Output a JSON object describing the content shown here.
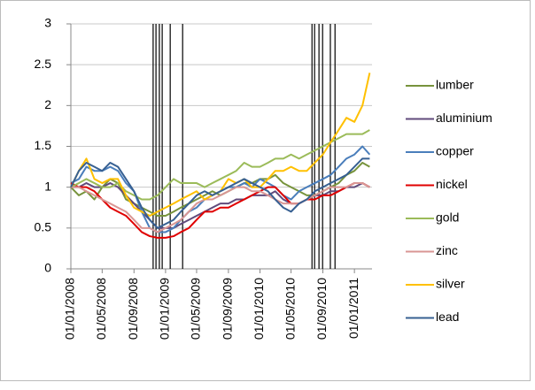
{
  "chart_data": {
    "type": "line",
    "x": [
      "2008-01-01",
      "2008-02-01",
      "2008-03-01",
      "2008-04-01",
      "2008-05-01",
      "2008-06-01",
      "2008-07-01",
      "2008-08-01",
      "2008-09-01",
      "2008-10-01",
      "2008-11-01",
      "2008-12-01",
      "2009-01-01",
      "2009-02-01",
      "2009-03-01",
      "2009-04-01",
      "2009-05-01",
      "2009-06-01",
      "2009-07-01",
      "2009-08-01",
      "2009-09-01",
      "2009-10-01",
      "2009-11-01",
      "2009-12-01",
      "2010-01-01",
      "2010-02-01",
      "2010-03-01",
      "2010-04-01",
      "2010-05-01",
      "2010-06-01",
      "2010-07-01",
      "2010-08-01",
      "2010-09-01",
      "2010-10-01",
      "2010-11-01",
      "2010-12-01",
      "2011-01-01",
      "2011-02-01",
      "2011-03-01"
    ],
    "series": [
      {
        "name": "lumber",
        "color": "#77933c",
        "values": [
          1.0,
          0.9,
          0.95,
          0.85,
          1.0,
          1.1,
          1.05,
          0.85,
          0.8,
          0.75,
          0.7,
          0.65,
          0.65,
          0.7,
          0.75,
          0.8,
          0.85,
          0.9,
          0.95,
          0.9,
          0.95,
          1.0,
          1.05,
          1.05,
          1.1,
          1.1,
          1.15,
          1.05,
          1.0,
          0.95,
          0.9,
          0.9,
          0.95,
          1.0,
          1.05,
          1.15,
          1.2,
          1.3,
          1.25
        ]
      },
      {
        "name": "aluminium",
        "color": "#604a7b",
        "values": [
          1.0,
          1.0,
          1.05,
          1.0,
          1.0,
          1.05,
          1.0,
          0.9,
          0.8,
          0.7,
          0.6,
          0.5,
          0.5,
          0.5,
          0.55,
          0.6,
          0.65,
          0.7,
          0.75,
          0.8,
          0.8,
          0.85,
          0.85,
          0.9,
          0.9,
          0.9,
          0.95,
          0.85,
          0.8,
          0.8,
          0.85,
          0.9,
          0.9,
          0.95,
          0.95,
          1.0,
          1.0,
          1.05,
          1.0
        ]
      },
      {
        "name": "copper",
        "color": "#4a7ebb",
        "values": [
          1.05,
          1.1,
          1.25,
          1.2,
          1.2,
          1.25,
          1.2,
          1.05,
          0.95,
          0.7,
          0.5,
          0.45,
          0.45,
          0.5,
          0.6,
          0.7,
          0.75,
          0.85,
          0.9,
          0.95,
          1.0,
          1.0,
          1.05,
          1.0,
          1.1,
          1.05,
          1.0,
          0.9,
          0.85,
          0.95,
          1.0,
          1.05,
          1.1,
          1.15,
          1.25,
          1.35,
          1.4,
          1.5,
          1.4
        ]
      },
      {
        "name": "nickel",
        "color": "#e00000",
        "values": [
          1.05,
          1.0,
          1.0,
          0.95,
          0.85,
          0.75,
          0.7,
          0.65,
          0.55,
          0.45,
          0.4,
          0.38,
          0.38,
          0.4,
          0.45,
          0.5,
          0.6,
          0.7,
          0.7,
          0.75,
          0.75,
          0.8,
          0.85,
          0.9,
          0.95,
          1.0,
          1.0,
          0.9,
          0.8,
          0.8,
          0.85,
          0.85,
          0.9,
          0.9,
          0.95,
          1.0,
          1.05,
          1.05,
          1.0
        ]
      },
      {
        "name": "gold",
        "color": "#9bbb59",
        "values": [
          1.0,
          1.05,
          1.1,
          1.05,
          1.0,
          1.0,
          1.05,
          0.95,
          0.9,
          0.85,
          0.85,
          0.9,
          1.0,
          1.1,
          1.05,
          1.05,
          1.05,
          1.0,
          1.05,
          1.1,
          1.15,
          1.2,
          1.3,
          1.25,
          1.25,
          1.3,
          1.35,
          1.35,
          1.4,
          1.35,
          1.4,
          1.45,
          1.5,
          1.55,
          1.6,
          1.65,
          1.65,
          1.65,
          1.7
        ]
      },
      {
        "name": "zinc",
        "color": "#d99694",
        "values": [
          1.0,
          1.0,
          0.95,
          0.9,
          0.85,
          0.8,
          0.75,
          0.7,
          0.6,
          0.5,
          0.5,
          0.45,
          0.5,
          0.55,
          0.6,
          0.7,
          0.8,
          0.85,
          0.85,
          0.9,
          0.95,
          1.0,
          1.0,
          0.95,
          0.95,
          0.9,
          0.85,
          0.8,
          0.8,
          0.8,
          0.85,
          0.9,
          0.95,
          1.0,
          1.0,
          1.0,
          1.05,
          1.05,
          1.0
        ]
      },
      {
        "name": "silver",
        "color": "#ffc000",
        "values": [
          1.0,
          1.2,
          1.35,
          1.1,
          1.05,
          1.1,
          1.1,
          0.9,
          0.75,
          0.7,
          0.65,
          0.7,
          0.75,
          0.8,
          0.85,
          0.9,
          0.95,
          0.85,
          0.9,
          0.95,
          1.1,
          1.05,
          1.1,
          1.0,
          1.0,
          1.1,
          1.2,
          1.2,
          1.25,
          1.2,
          1.2,
          1.3,
          1.4,
          1.55,
          1.7,
          1.85,
          1.8,
          2.0,
          2.4
        ]
      },
      {
        "name": "lead",
        "color": "#376092",
        "values": [
          1.0,
          1.2,
          1.3,
          1.25,
          1.2,
          1.3,
          1.25,
          1.1,
          0.95,
          0.75,
          0.6,
          0.5,
          0.55,
          0.6,
          0.7,
          0.8,
          0.9,
          0.95,
          0.9,
          0.95,
          1.0,
          1.05,
          1.1,
          1.05,
          1.0,
          0.95,
          0.85,
          0.75,
          0.7,
          0.8,
          0.85,
          0.95,
          1.0,
          1.05,
          1.1,
          1.15,
          1.25,
          1.35,
          1.35
        ]
      }
    ],
    "event_dates": [
      "2008-11-14",
      "2008-11-25",
      "2008-12-08",
      "2008-12-19",
      "2009-01-19",
      "2009-03-08",
      "2010-07-21",
      "2010-07-31",
      "2010-08-17",
      "2010-08-31",
      "2010-09-30",
      "2010-10-18"
    ],
    "event_color": "#000000",
    "xlim": [
      "2008-01-01",
      "2011-03-10"
    ],
    "xticks": [
      {
        "value": "2008-01-01",
        "label": "01/01/2008"
      },
      {
        "value": "2008-05-01",
        "label": "01/05/2008"
      },
      {
        "value": "2008-09-01",
        "label": "01/09/2008"
      },
      {
        "value": "2009-01-01",
        "label": "01/01/2009"
      },
      {
        "value": "2009-05-01",
        "label": "01/05/2009"
      },
      {
        "value": "2009-09-01",
        "label": "01/09/2009"
      },
      {
        "value": "2010-01-01",
        "label": "01/01/2010"
      },
      {
        "value": "2010-05-01",
        "label": "01/05/2010"
      },
      {
        "value": "2010-09-01",
        "label": "01/09/2010"
      },
      {
        "value": "2011-01-01",
        "label": "01/01/2011"
      }
    ],
    "ylim": [
      0,
      3
    ],
    "yticks": [
      0,
      0.5,
      1,
      1.5,
      2,
      2.5,
      3
    ],
    "grid": true,
    "legend": "right"
  }
}
